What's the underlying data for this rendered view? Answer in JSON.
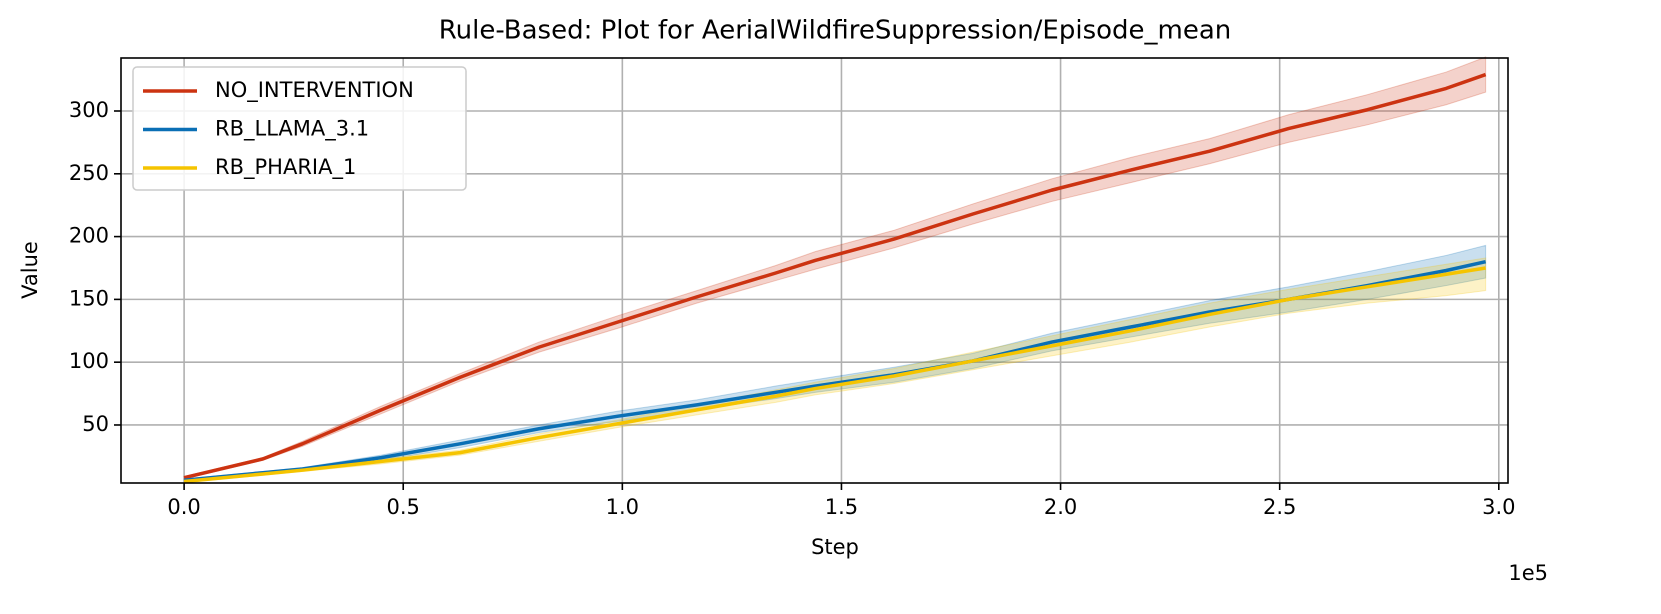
{
  "chart_data": {
    "type": "line",
    "title": "Rule-Based: Plot for AerialWildfireSuppression/Episode_mean",
    "x_label": "Step",
    "y_label": "Value",
    "x_offset_label": "1e5",
    "x": [
      0,
      18000,
      27000,
      45000,
      63000,
      81000,
      99000,
      117000,
      135000,
      144000,
      162000,
      180000,
      198000,
      216000,
      234000,
      252000,
      270000,
      288000,
      297000
    ],
    "series": [
      {
        "name": "NO_INTERVENTION",
        "color": "#cc3311",
        "values": [
          8,
          23,
          35,
          62,
          88,
          112,
          132,
          152,
          171,
          181,
          198,
          218,
          237,
          253,
          268,
          286,
          301,
          318,
          329
        ],
        "lower": [
          7,
          22,
          33,
          59,
          85,
          108,
          127,
          147,
          165,
          174,
          191,
          210,
          228,
          243,
          258,
          275,
          289,
          305,
          315
        ],
        "upper": [
          9,
          24,
          37,
          65,
          91,
          116,
          137,
          157,
          177,
          188,
          205,
          226,
          246,
          263,
          278,
          297,
          313,
          331,
          343
        ]
      },
      {
        "name": "RB_LLAMA_3.1",
        "color": "#0a6fb5",
        "values": [
          6,
          12,
          15,
          24,
          35,
          47,
          57,
          66,
          76,
          81,
          90,
          101,
          116,
          128,
          140,
          150,
          161,
          173,
          180
        ],
        "lower": [
          5,
          11,
          14,
          22,
          32,
          44,
          53,
          62,
          71,
          76,
          84,
          95,
          109,
          120,
          131,
          140,
          150,
          161,
          167
        ],
        "upper": [
          7,
          13,
          16,
          26,
          38,
          50,
          61,
          70,
          81,
          86,
          96,
          107,
          123,
          136,
          149,
          160,
          172,
          185,
          193
        ]
      },
      {
        "name": "RB_PHARIA_1",
        "color": "#f5c400",
        "values": [
          5,
          11,
          14,
          21,
          28,
          40,
          51,
          62,
          73,
          79,
          89,
          101,
          113,
          125,
          138,
          150,
          160,
          170,
          175
        ],
        "lower": [
          4,
          10,
          13,
          19,
          26,
          37,
          48,
          58,
          68,
          74,
          83,
          94,
          105,
          116,
          128,
          139,
          147,
          153,
          157
        ],
        "upper": [
          6,
          12,
          15,
          23,
          30,
          43,
          54,
          66,
          78,
          84,
          95,
          108,
          121,
          134,
          147,
          158,
          168,
          178,
          183
        ]
      }
    ],
    "xlim": [
      -14400,
      302100
    ],
    "ylim": [
      3.8,
      342.2
    ],
    "xticks": [
      {
        "value": 0,
        "label": "0.0"
      },
      {
        "value": 50000,
        "label": "0.5"
      },
      {
        "value": 100000,
        "label": "1.0"
      },
      {
        "value": 150000,
        "label": "1.5"
      },
      {
        "value": 200000,
        "label": "2.0"
      },
      {
        "value": 250000,
        "label": "2.5"
      },
      {
        "value": 300000,
        "label": "3.0"
      }
    ],
    "yticks": [
      50,
      100,
      150,
      200,
      250,
      300
    ],
    "grid": true,
    "legend": "upper left"
  }
}
